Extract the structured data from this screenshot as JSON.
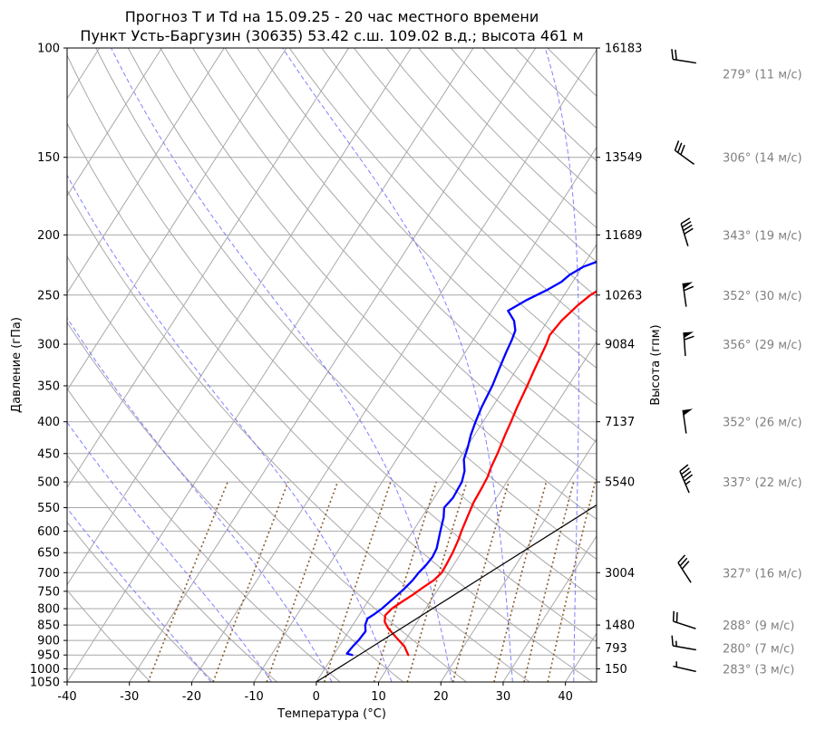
{
  "chart_data": {
    "type": "line",
    "title": "Прогноз T и Td на 15.09.25 - 20 час местного времени",
    "subtitle": "Пункт Усть-Баргузин (30635) 53.42 с.ш. 109.02 в.д.; высота 461 м",
    "xlabel": "Температура (°C)",
    "ylabel": "Давление (гПа)",
    "ylabel_right": "Высота (гпм)",
    "xlim": [
      -40,
      45
    ],
    "ylim": [
      1050,
      100
    ],
    "y_scale": "log",
    "grid": true,
    "x_ticks": [
      "-40",
      "-30",
      "-20",
      "-10",
      "0",
      "10",
      "20",
      "30",
      "40"
    ],
    "y_ticks": [
      "100",
      "150",
      "200",
      "250",
      "300",
      "350",
      "400",
      "450",
      "500",
      "550",
      "600",
      "650",
      "700",
      "750",
      "800",
      "850",
      "900",
      "950",
      "1000",
      "1050"
    ],
    "height_ticks": [
      {
        "p": 100,
        "label": "16183"
      },
      {
        "p": 150,
        "label": "13549"
      },
      {
        "p": 200,
        "label": "11689"
      },
      {
        "p": 250,
        "label": "10263"
      },
      {
        "p": 300,
        "label": "9084"
      },
      {
        "p": 400,
        "label": "7137"
      },
      {
        "p": 500,
        "label": "5540"
      },
      {
        "p": 700,
        "label": "3004"
      },
      {
        "p": 850,
        "label": "1480"
      },
      {
        "p": 925,
        "label": "793"
      },
      {
        "p": 1000,
        "label": "150"
      }
    ],
    "colors": {
      "temperature": "#ff0000",
      "dewpoint": "#0000ff",
      "moist_adiabat": "#6b6bff",
      "mixing_ratio": "#8b5a2b",
      "dry_adiabat": "#a8a8a8",
      "grid": "#a8a8a8",
      "parcel": "#000000",
      "wind_label": "#808080"
    },
    "series": [
      {
        "key": "temperature",
        "points": [
          [
            12.0,
            950
          ],
          [
            11.5,
            940
          ],
          [
            10.5,
            920
          ],
          [
            9.0,
            900
          ],
          [
            7.5,
            880
          ],
          [
            6.0,
            860
          ],
          [
            4.8,
            840
          ],
          [
            4.2,
            820
          ],
          [
            4.6,
            800
          ],
          [
            5.5,
            780
          ],
          [
            6.5,
            760
          ],
          [
            7.4,
            740
          ],
          [
            8.4,
            720
          ],
          [
            8.9,
            700
          ],
          [
            8.8,
            680
          ],
          [
            8.6,
            650
          ],
          [
            8.2,
            620
          ],
          [
            7.8,
            600
          ],
          [
            7.3,
            570
          ],
          [
            6.8,
            540
          ],
          [
            6.6,
            510
          ],
          [
            6.4,
            490
          ],
          [
            6.0,
            475
          ],
          [
            5.6,
            450
          ],
          [
            4.9,
            420
          ],
          [
            4.5,
            400
          ],
          [
            4.0,
            380
          ],
          [
            3.4,
            350
          ],
          [
            2.9,
            330
          ],
          [
            2.2,
            300
          ],
          [
            1.8,
            290
          ],
          [
            2.2,
            275
          ],
          [
            3.2,
            260
          ],
          [
            4.2,
            250
          ],
          [
            6.0,
            240
          ],
          [
            9.8,
            230
          ],
          [
            13.5,
            220
          ],
          [
            18.0,
            210
          ],
          [
            22.5,
            200
          ],
          [
            26.8,
            180
          ],
          [
            30.2,
            160
          ],
          [
            34.0,
            145
          ],
          [
            37.2,
            135
          ],
          [
            41.0,
            122
          ],
          [
            43.5,
            115
          ],
          [
            46.0,
            110
          ]
        ]
      },
      {
        "key": "dewpoint",
        "points": [
          [
            3.0,
            950
          ],
          [
            2.0,
            945
          ],
          [
            2.2,
            920
          ],
          [
            2.5,
            900
          ],
          [
            2.7,
            870
          ],
          [
            2.0,
            850
          ],
          [
            1.7,
            830
          ],
          [
            2.4,
            815
          ],
          [
            3.0,
            800
          ],
          [
            3.8,
            770
          ],
          [
            4.5,
            745
          ],
          [
            5.0,
            720
          ],
          [
            5.2,
            700
          ],
          [
            5.6,
            680
          ],
          [
            5.8,
            660
          ],
          [
            5.6,
            640
          ],
          [
            5.0,
            620
          ],
          [
            4.4,
            600
          ],
          [
            3.5,
            570
          ],
          [
            2.6,
            550
          ],
          [
            3.0,
            530
          ],
          [
            2.8,
            500
          ],
          [
            2.1,
            480
          ],
          [
            0.8,
            460
          ],
          [
            0.2,
            440
          ],
          [
            -0.6,
            420
          ],
          [
            -1.2,
            400
          ],
          [
            -1.7,
            380
          ],
          [
            -2.2,
            350
          ],
          [
            -2.8,
            330
          ],
          [
            -3.4,
            310
          ],
          [
            -3.8,
            295
          ],
          [
            -4.2,
            285
          ],
          [
            -5.4,
            275
          ],
          [
            -7.4,
            265
          ],
          [
            -5.6,
            255
          ],
          [
            -3.2,
            245
          ],
          [
            -1.8,
            238
          ],
          [
            -1.2,
            232
          ],
          [
            0.2,
            225
          ],
          [
            3.0,
            218
          ],
          [
            7.5,
            210
          ],
          [
            11.5,
            203
          ],
          [
            13.5,
            195
          ],
          [
            15.5,
            180
          ],
          [
            18.0,
            160
          ],
          [
            20.5,
            145
          ],
          [
            23.5,
            130
          ],
          [
            27.0,
            118
          ],
          [
            29.5,
            110
          ],
          [
            31.5,
            103
          ],
          [
            32.5,
            100
          ]
        ]
      },
      {
        "key": "parcel",
        "points": [
          [
            0.0,
            1050
          ],
          [
            41.5,
            380
          ]
        ]
      }
    ],
    "winds": [
      {
        "p": 105,
        "label": "279° (11 м/с)"
      },
      {
        "p": 150,
        "label": "306° (14 м/с)"
      },
      {
        "p": 200,
        "label": "343° (19 м/с)"
      },
      {
        "p": 250,
        "label": "352° (30 м/с)"
      },
      {
        "p": 300,
        "label": "356° (29 м/с)"
      },
      {
        "p": 400,
        "label": "352° (26 м/с)"
      },
      {
        "p": 500,
        "label": "337° (22 м/с)"
      },
      {
        "p": 700,
        "label": "327° (16 м/с)"
      },
      {
        "p": 850,
        "label": "288° (9 м/с)"
      },
      {
        "p": 925,
        "label": "280° (7 м/с)"
      },
      {
        "p": 1000,
        "label": "283° (3 м/с)"
      }
    ]
  }
}
